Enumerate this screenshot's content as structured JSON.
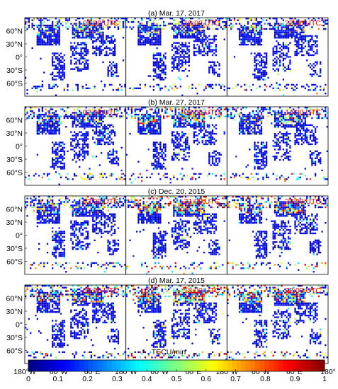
{
  "chart_data": {
    "type": "heatmap",
    "colormap": "jet",
    "colorbar": {
      "label": "TECU/min",
      "range": [
        0,
        1
      ],
      "ticks": [
        "0",
        "0.1",
        "0.2",
        "0.3",
        "0.4",
        "0.5",
        "0.6",
        "0.7",
        "0.8",
        "0.9",
        "1"
      ]
    },
    "x_ticks": [
      "180°W",
      "60°W",
      "60°E",
      "180°W",
      "60°W",
      "60°E",
      "180°W",
      "60°W",
      "60°E",
      "180°"
    ],
    "y_ticks": [
      "60°N",
      "30°N",
      "0°",
      "30°S",
      "60°S"
    ],
    "rows": [
      {
        "title": "(a) Mar. 17, 2017",
        "activity": [
          0.22,
          0.25,
          0.24
        ],
        "panels": [
          {
            "time": "05:00 UTC"
          },
          {
            "time": "18:00 UTC"
          },
          {
            "time": "22:00 UTC"
          }
        ]
      },
      {
        "title": "(b) Mar. 27, 2017",
        "activity": [
          0.24,
          0.36,
          0.27
        ],
        "panels": [
          {
            "time": "02:00 UTC"
          },
          {
            "time": "06:00 UTC"
          },
          {
            "time": "14:00 UTC"
          }
        ]
      },
      {
        "title": "(c) Dec. 20, 2015",
        "activity": [
          0.28,
          0.45,
          0.38
        ],
        "panels": [
          {
            "time": "03:00 UTC"
          },
          {
            "time": "21:00 UTC"
          },
          {
            "time": "23:00 UTC"
          }
        ]
      },
      {
        "title": "(d) Mar. 17, 2015",
        "activity": [
          0.33,
          0.55,
          0.42
        ],
        "panels": [
          {
            "time": "05:00 UTC"
          },
          {
            "time": "18:00 UTC"
          },
          {
            "time": "22:00 UTC"
          }
        ]
      }
    ]
  }
}
